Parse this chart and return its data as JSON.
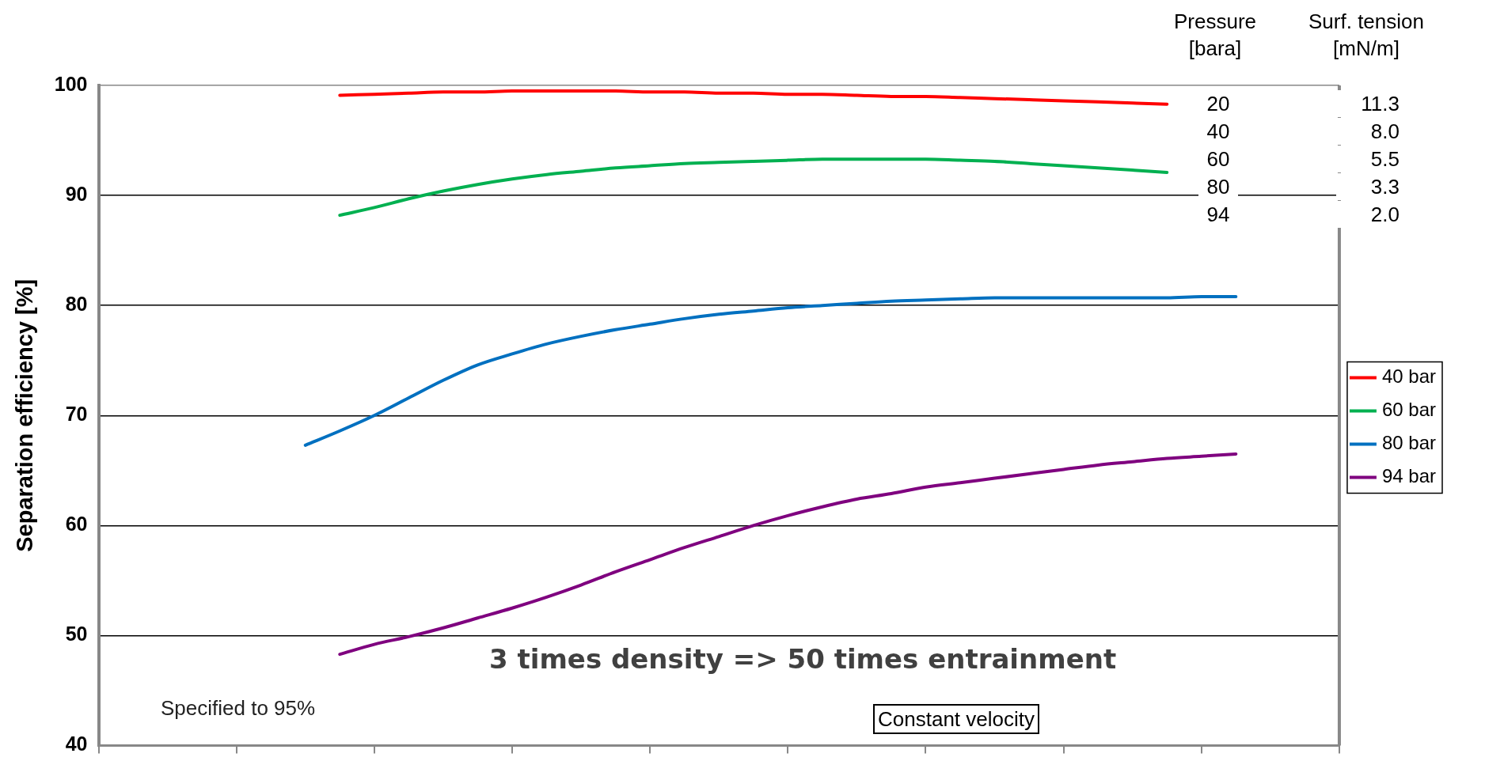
{
  "chart_data": {
    "type": "line",
    "ylabel": "Separation efficiency [%]",
    "categories": [
      null,
      null,
      null,
      null,
      null,
      null,
      null,
      null,
      null,
      null,
      null,
      null,
      null,
      null,
      null,
      null,
      null,
      null,
      null,
      null,
      null,
      null,
      null,
      null,
      null,
      null,
      null,
      null,
      null,
      null,
      null,
      null,
      null,
      null,
      null,
      null,
      null
    ],
    "series": [
      {
        "name": "40 bar",
        "color": "#ff0000",
        "values": [
          null,
          null,
          null,
          null,
          null,
          null,
          null,
          99.1,
          99.2,
          99.3,
          99.4,
          99.4,
          99.5,
          99.5,
          99.5,
          99.5,
          99.4,
          99.4,
          99.3,
          99.3,
          99.2,
          99.2,
          99.1,
          99.0,
          99.0,
          98.9,
          98.8,
          98.7,
          98.6,
          98.5,
          98.4,
          98.3,
          null,
          null,
          null,
          null,
          null
        ]
      },
      {
        "name": "60 bar",
        "color": "#00b050",
        "values": [
          null,
          null,
          null,
          null,
          null,
          null,
          null,
          88.2,
          88.9,
          89.7,
          90.4,
          91.0,
          91.5,
          91.9,
          92.2,
          92.5,
          92.7,
          92.9,
          93.0,
          93.1,
          93.2,
          93.3,
          93.3,
          93.3,
          93.3,
          93.2,
          93.1,
          92.9,
          92.7,
          92.5,
          92.3,
          92.1,
          null,
          null,
          null,
          null,
          null
        ]
      },
      {
        "name": "80 bar",
        "color": "#0070c0",
        "values": [
          null,
          null,
          null,
          null,
          null,
          null,
          67.3,
          68.6,
          70.0,
          71.6,
          73.2,
          74.6,
          75.6,
          76.5,
          77.2,
          77.8,
          78.3,
          78.8,
          79.2,
          79.5,
          79.8,
          80.0,
          80.2,
          80.4,
          80.5,
          80.6,
          80.7,
          80.7,
          80.7,
          80.7,
          80.7,
          80.7,
          80.8,
          80.8,
          null,
          null,
          null
        ]
      },
      {
        "name": "94 bar",
        "color": "#7f007f",
        "values": [
          null,
          null,
          null,
          null,
          null,
          null,
          null,
          48.3,
          49.2,
          49.9,
          50.7,
          51.6,
          52.5,
          53.5,
          54.6,
          55.8,
          56.9,
          58.0,
          59.0,
          60.0,
          60.9,
          61.7,
          62.4,
          62.9,
          63.5,
          63.9,
          64.3,
          64.7,
          65.1,
          65.5,
          65.8,
          66.1,
          66.3,
          66.5,
          null,
          null,
          null
        ]
      }
    ],
    "ylim": [
      40,
      100
    ],
    "yticks": [
      40,
      50,
      60,
      70,
      80,
      90,
      100
    ],
    "grid": "y",
    "legend": "right",
    "marker": "none",
    "line_style": "solid",
    "annotations": [
      "Pressure [bara]",
      "Surf. tension [mN/m]",
      "20",
      "40",
      "60",
      "80",
      "94",
      "11.3",
      "8.0",
      "5.5",
      "3.3",
      "2.0",
      "3 times density => 50 times entrainment",
      "Specified to 95%",
      "Constant velocity"
    ]
  }
}
